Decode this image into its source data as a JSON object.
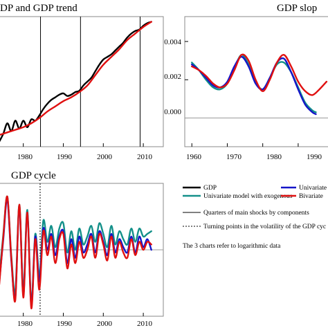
{
  "chart_data": [
    {
      "type": "line",
      "title": "DP and GDP trend",
      "xlabel": "",
      "ylabel": "",
      "x_ticks": [
        "1980",
        "1990",
        "2000",
        "2010"
      ],
      "xlim": [
        1974,
        2015
      ],
      "ylim": [
        0,
        1
      ],
      "series": [
        {
          "name": "GDP",
          "color": "#000000",
          "x": [
            1974,
            1975,
            1976,
            1977,
            1978,
            1979,
            1980,
            1981,
            1982,
            1983,
            1984,
            1985,
            1986,
            1987,
            1988,
            1989,
            1990,
            1991,
            1992,
            1993,
            1994,
            1995,
            1996,
            1997,
            1998,
            1999,
            2000,
            2001,
            2002,
            2003,
            2004,
            2005,
            2006,
            2007,
            2008,
            2009,
            2010,
            2011,
            2012
          ],
          "y": [
            0.04,
            0.1,
            0.18,
            0.12,
            0.2,
            0.14,
            0.2,
            0.15,
            0.21,
            0.2,
            0.24,
            0.29,
            0.33,
            0.36,
            0.38,
            0.4,
            0.41,
            0.39,
            0.4,
            0.42,
            0.43,
            0.47,
            0.5,
            0.53,
            0.58,
            0.63,
            0.67,
            0.69,
            0.71,
            0.74,
            0.77,
            0.8,
            0.84,
            0.87,
            0.89,
            0.9,
            0.93,
            0.95,
            0.96
          ]
        },
        {
          "name": "GDP trend",
          "color": "#e01010",
          "x": [
            1974,
            1976,
            1978,
            1980,
            1982,
            1984,
            1986,
            1988,
            1990,
            1992,
            1994,
            1996,
            1998,
            2000,
            2002,
            2004,
            2006,
            2008,
            2010,
            2012
          ],
          "y": [
            0.09,
            0.11,
            0.13,
            0.15,
            0.18,
            0.22,
            0.27,
            0.31,
            0.35,
            0.38,
            0.42,
            0.47,
            0.55,
            0.63,
            0.69,
            0.75,
            0.82,
            0.87,
            0.92,
            0.96
          ]
        }
      ],
      "vlines": [
        1984.3,
        1994.3,
        2009.2
      ]
    },
    {
      "type": "line",
      "title": "GDP slop",
      "xlabel": "",
      "ylabel": "",
      "x_ticks": [
        "1960",
        "1970",
        "1980",
        "1990"
      ],
      "y_ticks": [
        "0.000",
        "0.002",
        "0.004"
      ],
      "xlim": [
        1958,
        1999
      ],
      "ylim": [
        -0.0015,
        0.0053
      ],
      "hline": 0,
      "series": [
        {
          "name": "Univariate model with exogenous",
          "color": "#139089",
          "x": [
            1960,
            1962,
            1964,
            1966,
            1968,
            1970,
            1972,
            1974,
            1976,
            1978,
            1980,
            1982,
            1984,
            1986,
            1988,
            1990,
            1992,
            1994,
            1995
          ],
          "y": [
            0.0029,
            0.0025,
            0.002,
            0.0016,
            0.0015,
            0.0018,
            0.0026,
            0.0033,
            0.0028,
            0.0019,
            0.0015,
            0.0021,
            0.0028,
            0.0029,
            0.0024,
            0.0016,
            0.0008,
            0.0004,
            0.0003
          ]
        },
        {
          "name": "Univariate",
          "color": "#1515c8",
          "x": [
            1960,
            1962,
            1964,
            1966,
            1968,
            1970,
            1972,
            1974,
            1976,
            1978,
            1980,
            1982,
            1984,
            1986,
            1988,
            1990,
            1992,
            1994,
            1995
          ],
          "y": [
            0.0028,
            0.0025,
            0.0021,
            0.0017,
            0.0016,
            0.0019,
            0.0027,
            0.0032,
            0.0027,
            0.0018,
            0.0015,
            0.0021,
            0.0029,
            0.0031,
            0.0024,
            0.0015,
            0.0007,
            0.0003,
            0.0002
          ]
        },
        {
          "name": "Bivariate",
          "color": "#e01010",
          "x": [
            1960,
            1962,
            1964,
            1966,
            1968,
            1970,
            1972,
            1974,
            1976,
            1978,
            1980,
            1982,
            1984,
            1986,
            1988,
            1990,
            1992,
            1994,
            1996,
            1998
          ],
          "y": [
            0.0027,
            0.0025,
            0.0022,
            0.0018,
            0.0016,
            0.0018,
            0.0025,
            0.0033,
            0.003,
            0.002,
            0.0014,
            0.002,
            0.0029,
            0.0033,
            0.0027,
            0.0019,
            0.0014,
            0.0012,
            0.0015,
            0.0019
          ]
        }
      ]
    },
    {
      "type": "line",
      "title": "GDP cycle",
      "xlabel": "",
      "ylabel": "",
      "x_ticks": [
        "1980",
        "1990",
        "2000",
        "2010"
      ],
      "xlim": [
        1974,
        2015
      ],
      "ylim": [
        -1.25,
        1.25
      ],
      "hline": 0,
      "vlines_dotted": [
        1984.2
      ],
      "series": [
        {
          "name": "Univariate model with exogenous",
          "color": "#139089",
          "x": [
            1974,
            1975,
            1976,
            1977,
            1978,
            1979,
            1980,
            1981,
            1982,
            1983,
            1984,
            1985,
            1986,
            1987,
            1988,
            1989,
            1990,
            1991,
            1992,
            1993,
            1994,
            1995,
            1996,
            1997,
            1998,
            1999,
            2000,
            2001,
            2002,
            2003,
            2004,
            2005,
            2006,
            2007,
            2008,
            2009,
            2010,
            2011,
            2012
          ],
          "y": [
            -0.5,
            0.3,
            1.0,
            -0.1,
            -0.8,
            0.85,
            -0.75,
            0.75,
            -1.0,
            0.3,
            -0.5,
            0.55,
            0.15,
            0.45,
            0.05,
            0.4,
            0.5,
            -0.05,
            0.35,
            0.0,
            0.4,
            0.1,
            0.25,
            0.45,
            0.15,
            0.5,
            0.3,
            0.05,
            0.45,
            0.1,
            0.35,
            0.2,
            0.1,
            0.4,
            0.15,
            0.4,
            0.25,
            0.3,
            0.35
          ]
        },
        {
          "name": "Univariate",
          "color": "#1515c8",
          "x": [
            1974,
            1975,
            1976,
            1977,
            1978,
            1979,
            1980,
            1981,
            1982,
            1983,
            1984,
            1985,
            1986,
            1987,
            1988,
            1989,
            1990,
            1991,
            1992,
            1993,
            1994,
            1995,
            1996,
            1997,
            1998,
            1999,
            2000,
            2001,
            2002,
            2003,
            2004,
            2005,
            2006,
            2007,
            2008,
            2009,
            2010,
            2011,
            2012
          ],
          "y": [
            -0.6,
            0.2,
            0.95,
            -0.2,
            -0.9,
            0.8,
            -0.85,
            0.7,
            -1.05,
            0.25,
            -0.6,
            0.4,
            0.0,
            0.3,
            -0.1,
            0.25,
            0.35,
            -0.25,
            0.2,
            -0.15,
            0.25,
            -0.05,
            0.1,
            0.3,
            -0.05,
            0.35,
            0.15,
            -0.1,
            0.3,
            -0.05,
            0.2,
            0.05,
            -0.05,
            0.25,
            -0.05,
            0.25,
            0.05,
            0.2,
            0.0
          ]
        },
        {
          "name": "Bivariate",
          "color": "#e01010",
          "x": [
            1974,
            1975,
            1976,
            1977,
            1978,
            1979,
            1980,
            1981,
            1982,
            1983,
            1984,
            1985,
            1986,
            1987,
            1988,
            1989,
            1990,
            1991,
            1992,
            1993,
            1994,
            1995,
            1996,
            1997,
            1998,
            1999,
            2000,
            2001,
            2002,
            2003,
            2004,
            2005,
            2006,
            2007,
            2008,
            2009,
            2010,
            2011,
            2012
          ],
          "y": [
            -0.65,
            0.25,
            1.0,
            -0.15,
            -0.95,
            0.85,
            -0.9,
            0.7,
            -1.1,
            0.2,
            -0.75,
            0.35,
            -0.1,
            0.25,
            -0.25,
            0.2,
            0.3,
            -0.35,
            0.1,
            -0.25,
            0.15,
            -0.15,
            0.0,
            0.25,
            -0.15,
            0.3,
            0.1,
            -0.2,
            0.25,
            -0.15,
            0.15,
            -0.05,
            -0.15,
            0.2,
            -0.1,
            0.15,
            0.0,
            0.15,
            0.1
          ]
        }
      ]
    }
  ],
  "legend": {
    "items": [
      {
        "label": "GDP",
        "color": "#000000",
        "style": "solid"
      },
      {
        "label": "Univariate",
        "color": "#1515c8",
        "style": "solid"
      },
      {
        "label": "Univariate model with exogenous",
        "color": "#139089",
        "style": "solid"
      },
      {
        "label": "Bivariate",
        "color": "#e01010",
        "style": "solid"
      },
      {
        "label": "Quarters of main shocks by components",
        "color": "#000000",
        "style": "thin"
      },
      {
        "label": "Turning points in the volatility of the GDP cyc",
        "color": "#000000",
        "style": "dotted"
      }
    ],
    "note": "The 3 charts refer to logarithmic data"
  }
}
